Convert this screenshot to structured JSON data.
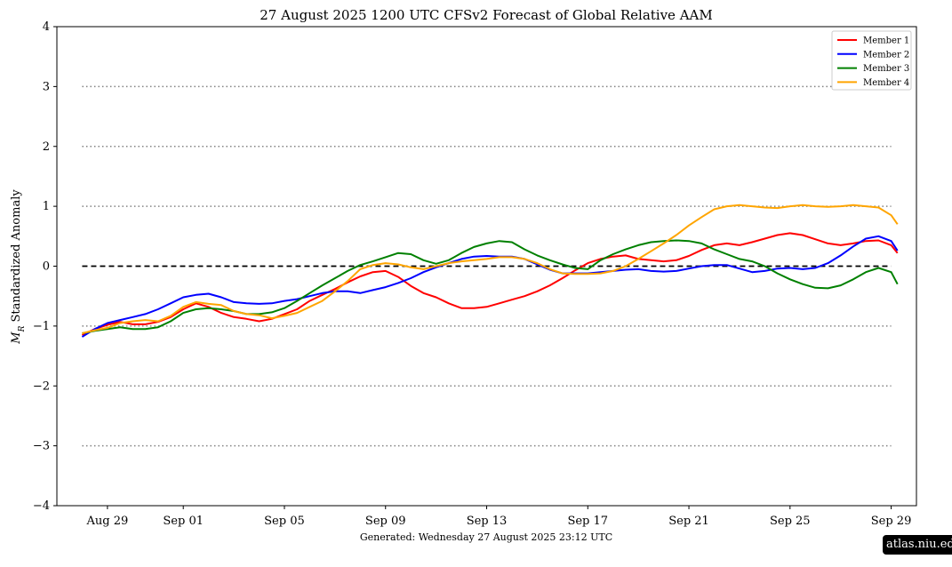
{
  "chart_data": {
    "type": "line",
    "title": "27  August  2025 1200 UTC   CFSv2 Forecast of Global Relative AAM",
    "ylabel_symbol": "M",
    "ylabel_subscript": "R",
    "ylabel_text": " Standardized Anomaly",
    "footer": "Generated: Wednesday  27  August  2025  23:12 UTC",
    "credit": "atlas.niu.edu",
    "ylim": [
      -4,
      4
    ],
    "yticks": [
      {
        "v": -4,
        "label": "−4"
      },
      {
        "v": -3,
        "label": "−3"
      },
      {
        "v": -2,
        "label": "−2"
      },
      {
        "v": -1,
        "label": "−1"
      },
      {
        "v": 0,
        "label": "0"
      },
      {
        "v": 1,
        "label": "1"
      },
      {
        "v": 2,
        "label": "2"
      },
      {
        "v": 3,
        "label": "3"
      },
      {
        "v": 4,
        "label": "4"
      }
    ],
    "x_start": "2025-08-27",
    "x_end": "2025-09-30",
    "xticks": [
      {
        "date": "2025-08-29",
        "label": "Aug 29"
      },
      {
        "date": "2025-09-01",
        "label": "Sep 01"
      },
      {
        "date": "2025-09-05",
        "label": "Sep 05"
      },
      {
        "date": "2025-09-09",
        "label": "Sep 09"
      },
      {
        "date": "2025-09-13",
        "label": "Sep 13"
      },
      {
        "date": "2025-09-17",
        "label": "Sep 17"
      },
      {
        "date": "2025-09-21",
        "label": "Sep 21"
      },
      {
        "date": "2025-09-25",
        "label": "Sep 25"
      },
      {
        "date": "2025-09-29",
        "label": "Sep 29"
      }
    ],
    "reference_lines": [
      {
        "y": 3,
        "style": "dotted",
        "color": "#808080"
      },
      {
        "y": 2,
        "style": "dotted",
        "color": "#808080"
      },
      {
        "y": 1,
        "style": "dotted",
        "color": "#808080"
      },
      {
        "y": 0,
        "style": "dashed",
        "color": "#000000"
      },
      {
        "y": -1,
        "style": "dotted",
        "color": "#808080"
      },
      {
        "y": -2,
        "style": "dotted",
        "color": "#808080"
      },
      {
        "y": -3,
        "style": "dotted",
        "color": "#808080"
      }
    ],
    "reference_x_range": [
      "2025-08-28",
      "2025-09-29"
    ],
    "grid": false,
    "legend_position": "top-right",
    "x": [
      "2025-08-28 00Z",
      "2025-08-28 12Z",
      "2025-08-29 00Z",
      "2025-08-29 12Z",
      "2025-08-30 00Z",
      "2025-08-30 12Z",
      "2025-08-31 00Z",
      "2025-08-31 12Z",
      "2025-09-01 00Z",
      "2025-09-01 12Z",
      "2025-09-02 00Z",
      "2025-09-02 12Z",
      "2025-09-03 00Z",
      "2025-09-03 12Z",
      "2025-09-04 00Z",
      "2025-09-04 12Z",
      "2025-09-05 00Z",
      "2025-09-05 12Z",
      "2025-09-06 00Z",
      "2025-09-06 12Z",
      "2025-09-07 00Z",
      "2025-09-07 12Z",
      "2025-09-08 00Z",
      "2025-09-08 12Z",
      "2025-09-09 00Z",
      "2025-09-09 12Z",
      "2025-09-10 00Z",
      "2025-09-10 12Z",
      "2025-09-11 00Z",
      "2025-09-11 12Z",
      "2025-09-12 00Z",
      "2025-09-12 12Z",
      "2025-09-13 00Z",
      "2025-09-13 12Z",
      "2025-09-14 00Z",
      "2025-09-14 12Z",
      "2025-09-15 00Z",
      "2025-09-15 12Z",
      "2025-09-16 00Z",
      "2025-09-16 12Z",
      "2025-09-17 00Z",
      "2025-09-17 12Z",
      "2025-09-18 00Z",
      "2025-09-18 12Z",
      "2025-09-19 00Z",
      "2025-09-19 12Z",
      "2025-09-20 00Z",
      "2025-09-20 12Z",
      "2025-09-21 00Z",
      "2025-09-21 12Z",
      "2025-09-22 00Z",
      "2025-09-22 12Z",
      "2025-09-23 00Z",
      "2025-09-23 12Z",
      "2025-09-24 00Z",
      "2025-09-24 12Z",
      "2025-09-25 00Z",
      "2025-09-25 12Z",
      "2025-09-26 00Z",
      "2025-09-26 12Z",
      "2025-09-27 00Z",
      "2025-09-27 12Z",
      "2025-09-28 00Z",
      "2025-09-28 12Z",
      "2025-09-29 00Z",
      "2025-09-29 06Z"
    ],
    "series": [
      {
        "name": "Member 1",
        "color": "#ff0000",
        "values": [
          -1.15,
          -1.05,
          -0.98,
          -0.93,
          -0.97,
          -0.97,
          -0.93,
          -0.85,
          -0.72,
          -0.62,
          -0.68,
          -0.78,
          -0.85,
          -0.88,
          -0.92,
          -0.88,
          -0.8,
          -0.72,
          -0.58,
          -0.48,
          -0.38,
          -0.27,
          -0.17,
          -0.1,
          -0.08,
          -0.18,
          -0.33,
          -0.45,
          -0.52,
          -0.62,
          -0.7,
          -0.7,
          -0.68,
          -0.62,
          -0.56,
          -0.5,
          -0.42,
          -0.32,
          -0.2,
          -0.07,
          0.05,
          0.12,
          0.16,
          0.18,
          0.12,
          0.1,
          0.08,
          0.1,
          0.17,
          0.27,
          0.35,
          0.38,
          0.35,
          0.4,
          0.46,
          0.52,
          0.55,
          0.52,
          0.45,
          0.38,
          0.35,
          0.38,
          0.42,
          0.43,
          0.35,
          0.22
        ]
      },
      {
        "name": "Member 2",
        "color": "#0000ff",
        "values": [
          -1.18,
          -1.05,
          -0.95,
          -0.9,
          -0.85,
          -0.8,
          -0.72,
          -0.62,
          -0.52,
          -0.48,
          -0.46,
          -0.52,
          -0.6,
          -0.62,
          -0.63,
          -0.62,
          -0.58,
          -0.55,
          -0.5,
          -0.45,
          -0.42,
          -0.42,
          -0.45,
          -0.4,
          -0.35,
          -0.28,
          -0.2,
          -0.1,
          -0.02,
          0.05,
          0.12,
          0.16,
          0.17,
          0.16,
          0.16,
          0.12,
          0.03,
          -0.06,
          -0.12,
          -0.12,
          -0.12,
          -0.1,
          -0.08,
          -0.06,
          -0.05,
          -0.08,
          -0.09,
          -0.08,
          -0.04,
          0.0,
          0.02,
          0.02,
          -0.04,
          -0.1,
          -0.08,
          -0.04,
          -0.03,
          -0.05,
          -0.03,
          0.05,
          0.18,
          0.33,
          0.46,
          0.5,
          0.42,
          0.26
        ]
      },
      {
        "name": "Member 3",
        "color": "#008000",
        "values": [
          -1.12,
          -1.08,
          -1.05,
          -1.02,
          -1.05,
          -1.05,
          -1.02,
          -0.92,
          -0.78,
          -0.72,
          -0.7,
          -0.72,
          -0.75,
          -0.8,
          -0.8,
          -0.77,
          -0.7,
          -0.58,
          -0.45,
          -0.32,
          -0.2,
          -0.08,
          0.02,
          0.08,
          0.15,
          0.22,
          0.2,
          0.1,
          0.04,
          0.1,
          0.22,
          0.32,
          0.38,
          0.42,
          0.4,
          0.28,
          0.18,
          0.1,
          0.03,
          -0.03,
          -0.05,
          0.1,
          0.2,
          0.28,
          0.35,
          0.4,
          0.42,
          0.43,
          0.42,
          0.38,
          0.28,
          0.2,
          0.12,
          0.08,
          0.0,
          -0.12,
          -0.22,
          -0.3,
          -0.36,
          -0.37,
          -0.32,
          -0.22,
          -0.1,
          -0.03,
          -0.1,
          -0.3
        ]
      },
      {
        "name": "Member 4",
        "color": "#ffa500",
        "values": [
          -1.12,
          -1.07,
          -1.03,
          -0.95,
          -0.92,
          -0.9,
          -0.92,
          -0.83,
          -0.68,
          -0.6,
          -0.63,
          -0.65,
          -0.75,
          -0.8,
          -0.82,
          -0.87,
          -0.83,
          -0.78,
          -0.68,
          -0.58,
          -0.42,
          -0.25,
          -0.05,
          0.02,
          0.05,
          0.03,
          -0.02,
          -0.05,
          0.0,
          0.05,
          0.08,
          0.1,
          0.12,
          0.15,
          0.15,
          0.12,
          0.05,
          -0.05,
          -0.12,
          -0.13,
          -0.13,
          -0.12,
          -0.08,
          0.0,
          0.12,
          0.25,
          0.38,
          0.52,
          0.68,
          0.82,
          0.95,
          1.0,
          1.02,
          1.0,
          0.98,
          0.97,
          1.0,
          1.02,
          1.0,
          0.99,
          1.0,
          1.02,
          1.0,
          0.98,
          0.85,
          0.7
        ]
      }
    ]
  }
}
